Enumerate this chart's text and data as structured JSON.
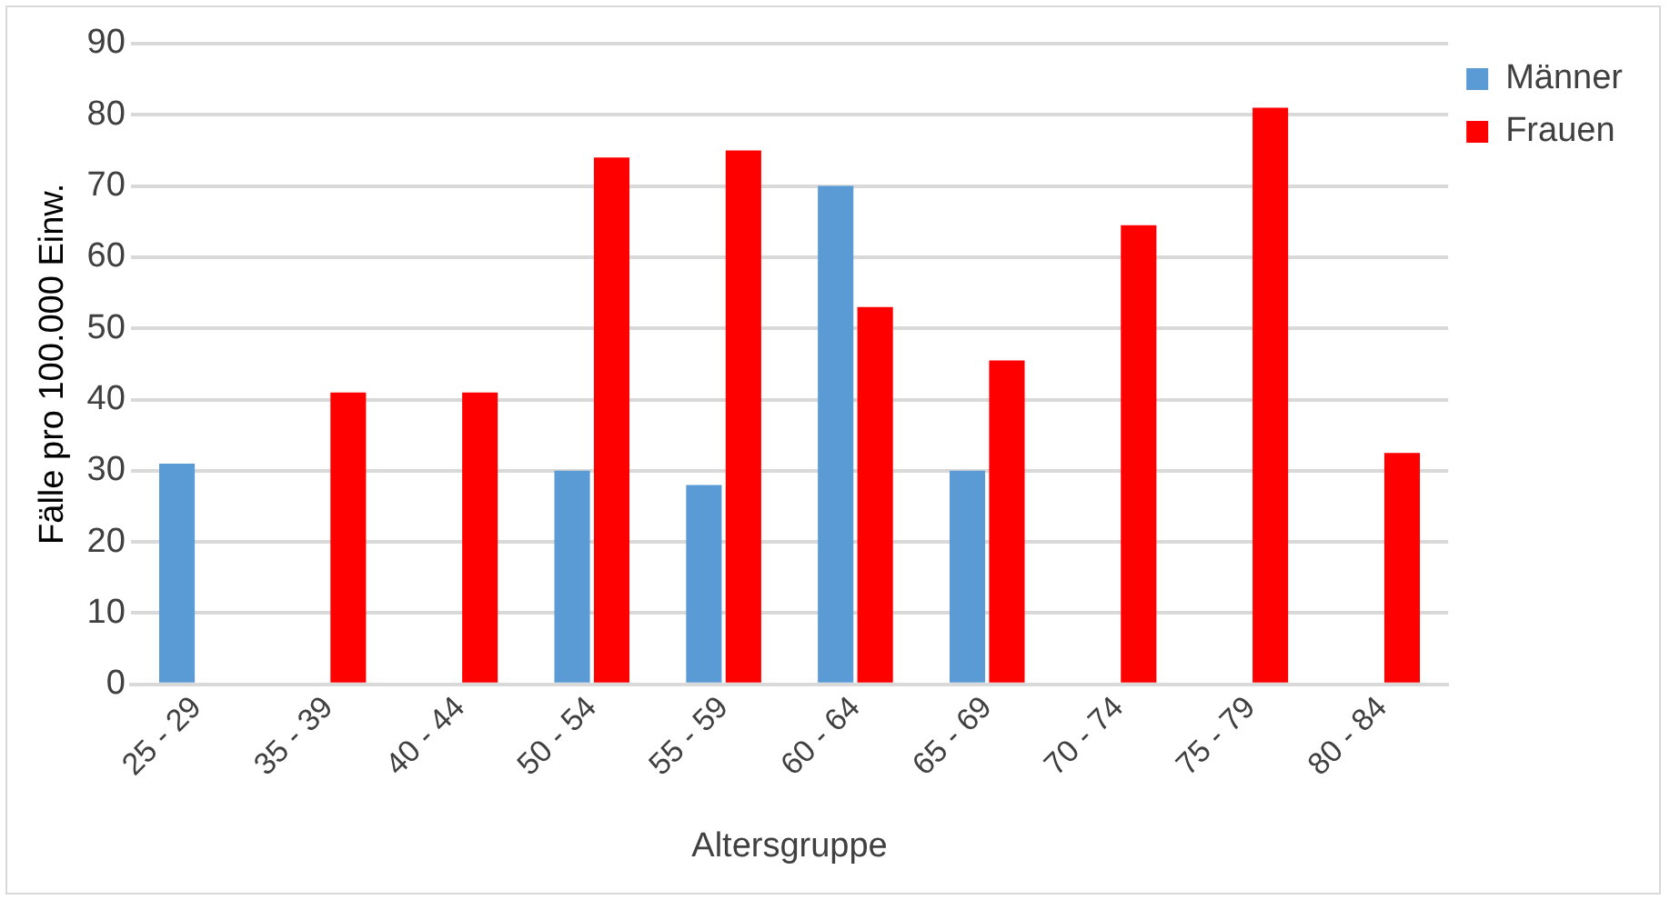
{
  "chart_data": {
    "type": "bar",
    "xlabel": "Altersgruppe",
    "ylabel": "Fälle pro 100.000 Einw.",
    "categories": [
      "25 - 29",
      "35 - 39",
      "40 - 44",
      "50 - 54",
      "55 - 59",
      "60 - 64",
      "65 - 69",
      "70 - 74",
      "75 - 79",
      "80 - 84"
    ],
    "series": [
      {
        "name": "Männer",
        "color": "#5b9bd5",
        "values": [
          31,
          null,
          null,
          30,
          28,
          70,
          30,
          null,
          null,
          null
        ]
      },
      {
        "name": "Frauen",
        "color": "#ff0000",
        "values": [
          null,
          41,
          41,
          74,
          75,
          53,
          45.5,
          64.5,
          81,
          32.5
        ]
      }
    ],
    "ylim": [
      0,
      90
    ],
    "yticks": [
      0,
      10,
      20,
      30,
      40,
      50,
      60,
      70,
      80,
      90
    ],
    "grid": "y",
    "legend": "top right"
  }
}
